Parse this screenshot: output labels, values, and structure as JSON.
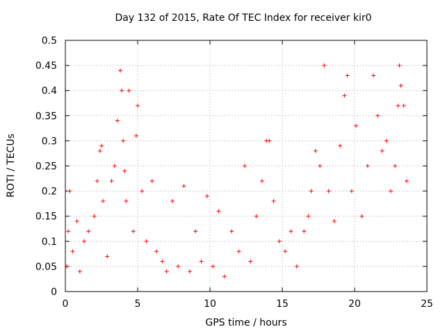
{
  "chart_data": {
    "type": "scatter",
    "title": "Day 132 of 2015, Rate Of TEC Index for receiver kir0",
    "xlabel": "GPS time / hours",
    "ylabel": "ROTI / TECUs",
    "xlim": [
      0,
      25
    ],
    "ylim": [
      0,
      0.5
    ],
    "xticks": [
      0,
      5,
      10,
      15,
      20,
      25
    ],
    "yticks": [
      0,
      0.05,
      0.1,
      0.15,
      0.2,
      0.25,
      0.3,
      0.35,
      0.4,
      0.45,
      0.5
    ],
    "grid": true,
    "marker": "+",
    "color": "#ff0000",
    "series": [
      {
        "x": [
          0.1,
          0.2,
          0.3,
          0.5,
          0.8,
          1.0,
          1.3,
          1.6,
          2.0,
          2.2,
          2.4,
          2.5,
          2.6,
          2.9,
          3.2,
          3.4,
          3.6,
          3.8,
          3.9,
          4.0,
          4.1,
          4.2,
          4.4,
          4.7,
          4.9,
          5.0,
          5.3,
          5.6,
          6.0,
          6.3,
          6.7,
          7.0,
          7.4,
          7.8,
          8.2,
          8.6,
          9.0,
          9.4,
          9.8,
          10.2,
          10.6,
          11.0,
          11.5,
          12.0,
          12.4,
          12.8,
          13.2,
          13.6,
          13.9,
          14.1,
          14.4,
          14.8,
          15.2,
          15.6,
          16.0,
          16.5,
          16.8,
          17.0,
          17.3,
          17.6,
          17.9,
          18.2,
          18.6,
          19.0,
          19.3,
          19.5,
          19.8,
          20.1,
          20.5,
          20.9,
          21.3,
          21.6,
          21.9,
          22.2,
          22.5,
          22.8,
          23.0,
          23.1,
          23.2,
          23.4,
          23.6
        ],
        "y": [
          0.05,
          0.12,
          0.2,
          0.08,
          0.14,
          0.04,
          0.1,
          0.12,
          0.15,
          0.22,
          0.28,
          0.29,
          0.18,
          0.07,
          0.22,
          0.25,
          0.34,
          0.44,
          0.4,
          0.3,
          0.24,
          0.18,
          0.4,
          0.12,
          0.31,
          0.37,
          0.2,
          0.1,
          0.22,
          0.08,
          0.06,
          0.04,
          0.18,
          0.05,
          0.21,
          0.04,
          0.12,
          0.06,
          0.19,
          0.05,
          0.16,
          0.03,
          0.12,
          0.08,
          0.25,
          0.06,
          0.15,
          0.22,
          0.3,
          0.3,
          0.18,
          0.1,
          0.08,
          0.12,
          0.05,
          0.12,
          0.15,
          0.2,
          0.28,
          0.25,
          0.45,
          0.2,
          0.14,
          0.29,
          0.39,
          0.43,
          0.2,
          0.33,
          0.15,
          0.25,
          0.43,
          0.35,
          0.28,
          0.3,
          0.2,
          0.25,
          0.37,
          0.45,
          0.41,
          0.37,
          0.22
        ]
      }
    ]
  }
}
